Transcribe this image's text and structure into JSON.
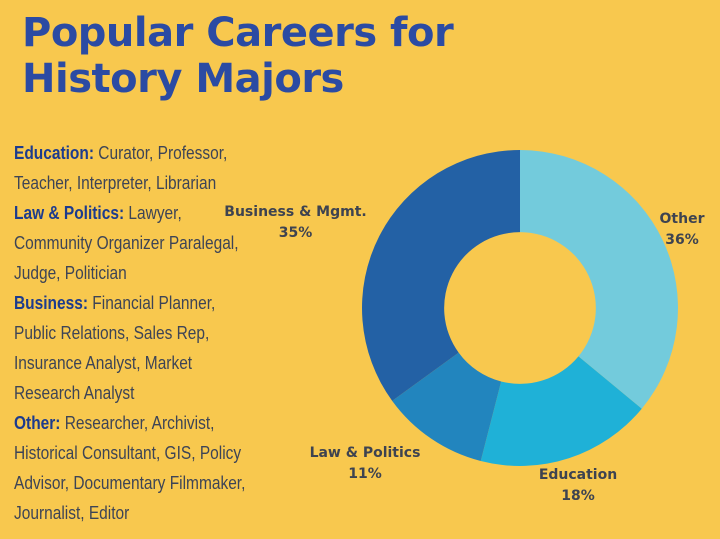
{
  "page": {
    "title_lines": [
      "Popular Careers for",
      "History Majors"
    ]
  },
  "careers_list": [
    {
      "category": "Education:",
      "roles": "Curator, Professor, Teacher, Interpreter, Librarian"
    },
    {
      "category": "Law & Politics:",
      "roles": "Lawyer, Community Organizer Paralegal, Judge, Politician"
    },
    {
      "category": "Business:",
      "roles": "Financial Planner, Public Relations, Sales Rep, Insurance Analyst, Market Research Analyst"
    },
    {
      "category": "Other:",
      "roles": "Researcher, Archivist, Historical Consultant, GIS, Policy Advisor, Documentary Filmmaker, Journalist, Editor"
    }
  ],
  "chart_data": {
    "type": "pie",
    "subtype": "donut",
    "title": "Popular Careers for History Majors",
    "categories": [
      "Other",
      "Education",
      "Law & Politics",
      "Business & Mgmt."
    ],
    "values": [
      36,
      18,
      11,
      35
    ],
    "unit": "%",
    "colors": [
      "#73CBDC",
      "#1FB1D7",
      "#2285BE",
      "#2361A5"
    ],
    "start_angle_deg": 0,
    "direction": "clockwise",
    "inner_radius_ratio": 0.48,
    "legend_position": "none",
    "labels": [
      {
        "text": "Other",
        "pct": "36%"
      },
      {
        "text": "Education",
        "pct": "18%"
      },
      {
        "text": "Law & Politics",
        "pct": "11%"
      },
      {
        "text": "Business & Mgmt.",
        "pct": "35%"
      }
    ]
  },
  "colors": {
    "background": "#F8C84E",
    "title_text": "#2B4BA3",
    "category_text": "#1C3B8E",
    "body_text": "#3D4456",
    "chart_label_text": "#3E4350"
  }
}
